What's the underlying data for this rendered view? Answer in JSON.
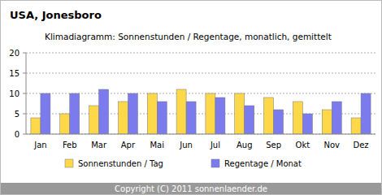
{
  "chart_data": {
    "type": "bar",
    "title": "USA, Jonesboro",
    "subtitle": "Klimadiagramm: Sonnenstunden / Regentage, monatlich, gemittelt",
    "footer": "Copyright (C) 2011 sonnenlaender.de",
    "categories": [
      "Jan",
      "Feb",
      "Mar",
      "Apr",
      "Mai",
      "Jun",
      "Jul",
      "Aug",
      "Sep",
      "Okt",
      "Nov",
      "Dez"
    ],
    "series": [
      {
        "name": "Sonnenstunden / Tag",
        "color": "#ffd84a",
        "values": [
          4,
          5,
          7,
          8,
          10,
          11,
          10,
          10,
          9,
          8,
          6,
          4
        ]
      },
      {
        "name": "Regentage / Monat",
        "color": "#7b7bee",
        "values": [
          10,
          10,
          11,
          10,
          8,
          8,
          9,
          7,
          6,
          5,
          8,
          10
        ]
      }
    ],
    "ylim": [
      0,
      20
    ],
    "yticks": [
      0,
      5,
      10,
      15,
      20
    ],
    "grid": true,
    "legend": "bottom"
  }
}
